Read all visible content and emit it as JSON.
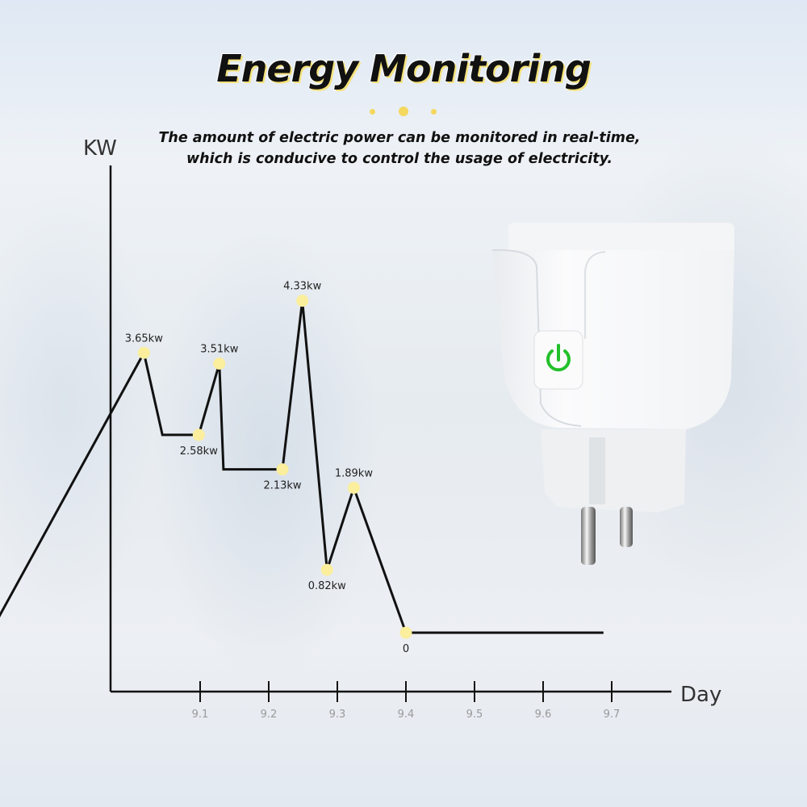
{
  "header": {
    "title": "Energy Monitoring",
    "subtitle_lines": [
      "The amount of electric power can be monitored in real-time,",
      "which is conducive to control the usage of electricity."
    ]
  },
  "product": {
    "name": "smart-plug",
    "power_icon": "power-icon",
    "power_color": "#22c02a"
  },
  "chart_data": {
    "type": "line",
    "title": "",
    "ylabel": "KW",
    "xlabel": "Day",
    "xticks": [
      "9.1",
      "9.2",
      "9.3",
      "9.4",
      "9.5",
      "9.6",
      "9.7"
    ],
    "xtick_values": [
      9.1,
      9.2,
      9.3,
      9.4,
      9.5,
      9.6,
      9.7
    ],
    "ylim": [
      0,
      6.2
    ],
    "grid": false,
    "line_color": "#111111",
    "marker_color": "#fbee9c",
    "points": [
      {
        "x": 8.559,
        "y": 0,
        "label": ""
      },
      {
        "x": 8.794,
        "y": 0,
        "label": ""
      },
      {
        "x": 9.018,
        "y": 3.65,
        "label": "3.65kw",
        "marker": true,
        "pos": "above"
      },
      {
        "x": 9.045,
        "y": 2.58,
        "label": ""
      },
      {
        "x": 9.098,
        "y": 2.58,
        "label": "2.58kw",
        "marker": true,
        "pos": "below"
      },
      {
        "x": 9.128,
        "y": 3.51,
        "label": "3.51kw",
        "marker": true,
        "pos": "above"
      },
      {
        "x": 9.134,
        "y": 2.13,
        "label": ""
      },
      {
        "x": 9.22,
        "y": 2.13,
        "label": "2.13kw",
        "marker": true,
        "pos": "below"
      },
      {
        "x": 9.249,
        "y": 4.33,
        "label": "4.33kw",
        "marker": true,
        "pos": "above"
      },
      {
        "x": 9.285,
        "y": 0.82,
        "label": "0.82kw",
        "marker": true,
        "pos": "below"
      },
      {
        "x": 9.324,
        "y": 1.89,
        "label": "1.89kw",
        "marker": true,
        "pos": "above"
      },
      {
        "x": 9.4,
        "y": 0,
        "label": "0",
        "marker": true,
        "pos": "below"
      },
      {
        "x": 9.688,
        "y": 0,
        "label": ""
      }
    ]
  }
}
